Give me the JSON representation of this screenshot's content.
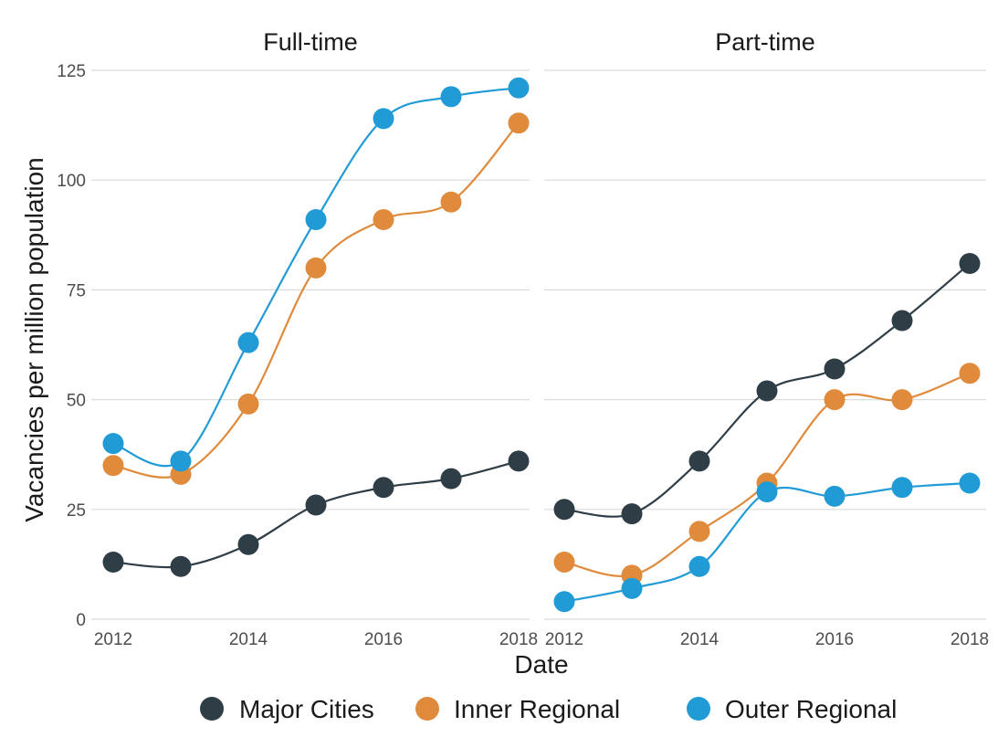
{
  "chart_data": {
    "type": "line",
    "xlabel": "Date",
    "ylabel": "Vacancies per million population",
    "ylim": [
      0,
      125
    ],
    "yticks": [
      "0",
      "25",
      "50",
      "75",
      "100",
      "125"
    ],
    "xlim": [
      2012,
      2018
    ],
    "xticks": [
      "2012",
      "2014",
      "2016",
      "2018"
    ],
    "x": [
      2012,
      2013,
      2014,
      2015,
      2016,
      2017,
      2018
    ],
    "grid": true,
    "legend": {
      "position": "bottom",
      "entries": [
        "Major Cities",
        "Inner Regional",
        "Outer Regional"
      ]
    },
    "colors": {
      "Major Cities": "#2f3e46",
      "Inner Regional": "#e08a3c",
      "Outer Regional": "#219bd6"
    },
    "panels": [
      {
        "title": "Full-time",
        "series": [
          {
            "name": "Major Cities",
            "values": [
              13,
              12,
              17,
              26,
              30,
              32,
              36
            ]
          },
          {
            "name": "Inner Regional",
            "values": [
              35,
              33,
              49,
              80,
              91,
              95,
              113
            ]
          },
          {
            "name": "Outer Regional",
            "values": [
              40,
              36,
              63,
              91,
              114,
              119,
              121
            ]
          }
        ]
      },
      {
        "title": "Part-time",
        "series": [
          {
            "name": "Major Cities",
            "values": [
              25,
              24,
              36,
              52,
              57,
              68,
              81
            ]
          },
          {
            "name": "Inner Regional",
            "values": [
              13,
              10,
              20,
              31,
              50,
              50,
              56
            ]
          },
          {
            "name": "Outer Regional",
            "values": [
              4,
              7,
              12,
              29,
              28,
              30,
              31
            ]
          }
        ]
      }
    ]
  }
}
